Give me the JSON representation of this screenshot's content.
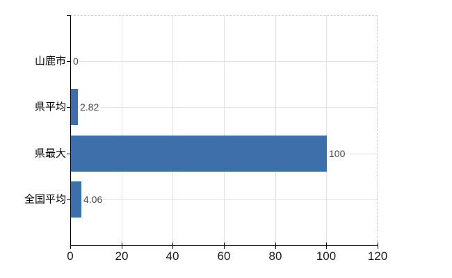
{
  "chart_data": {
    "type": "bar",
    "orientation": "horizontal",
    "title": "",
    "xlabel": "",
    "ylabel": "",
    "categories": [
      "山鹿市",
      "県平均",
      "県最大",
      "全国平均"
    ],
    "values": [
      0,
      2.82,
      100,
      4.06
    ],
    "value_labels": [
      "0",
      "2.82",
      "100",
      "4.06"
    ],
    "xlim": [
      0,
      120
    ],
    "x_ticks": [
      0,
      20,
      40,
      60,
      80,
      100,
      120
    ],
    "grid": true,
    "legend_position": "none",
    "colors": {
      "bar": "#3f6fab",
      "axis": "#000000",
      "gridline": "#dee3dd",
      "plot_border": "#c9d0c9",
      "x_tick_label": "#1a1a1a",
      "category_label": "#000000",
      "value_label": "#454545",
      "background": "#ffffff"
    }
  }
}
